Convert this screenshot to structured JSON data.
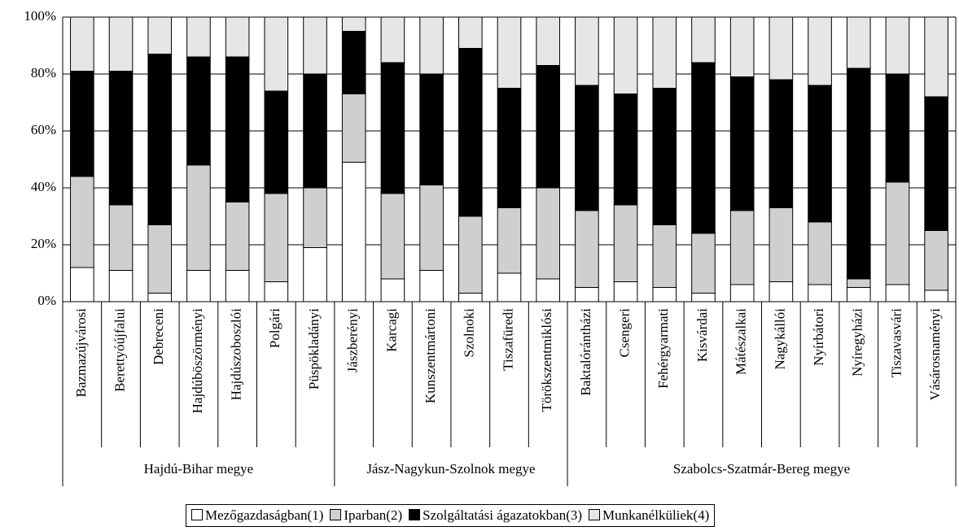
{
  "chart_data": {
    "type": "stacked_bar",
    "groups": [
      {
        "name": "Hajdú-Bihar megye",
        "categories": [
          "Bazmazújvárosi",
          "Berettyóújfalui",
          "Debreceni",
          "Hajdúböszörményi",
          "Hajdúszoboszlói",
          "Polgári",
          "Püspökladányi"
        ]
      },
      {
        "name": "Jász-Nagykun-Szolnok megye",
        "categories": [
          "Jászberényi",
          "Karcagi",
          "Kunszentmártoni",
          "Szolnoki",
          "Tiszafüredi",
          "Törökszentmiklósi"
        ]
      },
      {
        "name": "Szabolcs-Szatmár-Bereg megye",
        "categories": [
          "Baktalórántházi",
          "Csengeri",
          "Fehérgyarmati",
          "Kisvárdai",
          "Mátészalkai",
          "Nagykállói",
          "Nyírbátori",
          "Nyíregyházi",
          "Tiszavasvári",
          "Vásárosnaményi"
        ]
      }
    ],
    "series": [
      {
        "name": "Mezőgazdaságban(1)",
        "color": "#ffffff",
        "values": [
          12,
          11,
          3,
          11,
          11,
          7,
          19,
          49,
          8,
          11,
          3,
          10,
          8,
          5,
          7,
          5,
          3,
          6,
          7,
          6,
          5,
          6,
          4
        ]
      },
      {
        "name": "Iparban(2)",
        "color": "#cfcfcf",
        "values": [
          32,
          23,
          24,
          37,
          24,
          31,
          21,
          24,
          30,
          30,
          27,
          23,
          32,
          27,
          27,
          22,
          21,
          26,
          26,
          22,
          3,
          36,
          21
        ]
      },
      {
        "name": "Szolgáltatási ágazatokban(3)",
        "color": "#000000",
        "values": [
          37,
          47,
          60,
          38,
          51,
          36,
          40,
          22,
          46,
          39,
          59,
          42,
          43,
          44,
          39,
          48,
          60,
          47,
          45,
          48,
          74,
          38,
          47
        ]
      },
      {
        "name": "Munkanélküliek(4)",
        "color": "#e6e6e6",
        "values": [
          19,
          19,
          13,
          14,
          14,
          26,
          20,
          5,
          16,
          20,
          11,
          25,
          17,
          24,
          27,
          25,
          16,
          21,
          22,
          24,
          18,
          20,
          28
        ]
      }
    ],
    "ylim": [
      0,
      100
    ],
    "yticks": [
      {
        "value": 0,
        "label": "0%"
      },
      {
        "value": 20,
        "label": "20%"
      },
      {
        "value": 40,
        "label": "40%"
      },
      {
        "value": 60,
        "label": "60%"
      },
      {
        "value": 80,
        "label": "80%"
      },
      {
        "value": 100,
        "label": "100%"
      }
    ],
    "grid": true
  }
}
